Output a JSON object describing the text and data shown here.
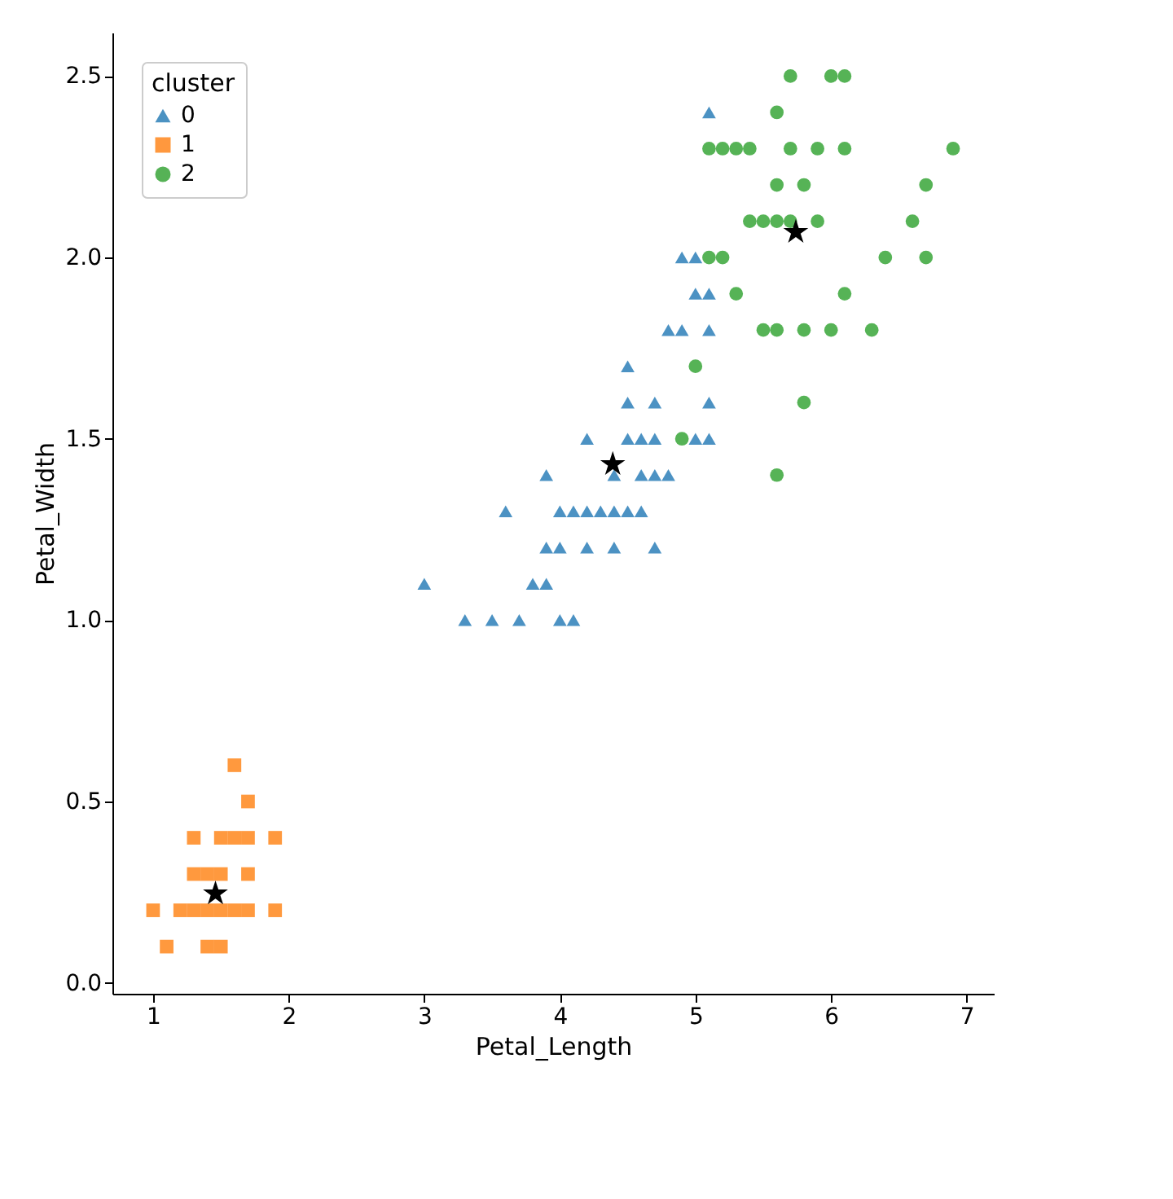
{
  "chart_data": {
    "type": "scatter",
    "xlabel": "Petal_Length",
    "ylabel": "Petal_Width",
    "legend_title": "cluster",
    "legend": "top left",
    "grid": false,
    "xlim": [
      0.7,
      7.2
    ],
    "xticks": [
      1,
      2,
      3,
      4,
      5,
      6,
      7
    ],
    "ylim": [
      -0.03,
      2.62
    ],
    "yticks": [
      {
        "value": 0,
        "label": "0.0"
      },
      0.5,
      {
        "value": 1,
        "label": "1.0"
      },
      1.5,
      {
        "value": 2,
        "label": "2.0"
      },
      2.5
    ],
    "series": [
      {
        "name": "0",
        "color": "#1f77b4",
        "marker": "triangle",
        "x": [
          5.1,
          4.9,
          5.0,
          5.0,
          5.1,
          4.8,
          4.9,
          5.1,
          4.5,
          4.5,
          4.7,
          5.1,
          4.2,
          4.5,
          4.6,
          4.7,
          5.0,
          5.1,
          3.9,
          4.4,
          4.6,
          4.7,
          4.8,
          3.6,
          4.0,
          4.1,
          4.2,
          4.3,
          4.4,
          4.5,
          4.6,
          3.9,
          4.0,
          4.2,
          4.4,
          4.7,
          3.0,
          3.8,
          3.9,
          3.3,
          3.5,
          3.7,
          4.0,
          4.1
        ],
        "values": [
          2.4,
          2.0,
          2.0,
          1.9,
          1.9,
          1.8,
          1.8,
          1.8,
          1.7,
          1.6,
          1.6,
          1.6,
          1.5,
          1.5,
          1.5,
          1.5,
          1.5,
          1.5,
          1.4,
          1.4,
          1.4,
          1.4,
          1.4,
          1.3,
          1.3,
          1.3,
          1.3,
          1.3,
          1.3,
          1.3,
          1.3,
          1.2,
          1.2,
          1.2,
          1.2,
          1.2,
          1.1,
          1.1,
          1.1,
          1.0,
          1.0,
          1.0,
          1.0,
          1.0
        ]
      },
      {
        "name": "1",
        "color": "#ff7f0e",
        "marker": "square",
        "x": [
          1.6,
          1.7,
          1.3,
          1.5,
          1.6,
          1.7,
          1.9,
          1.3,
          1.4,
          1.5,
          1.7,
          1.0,
          1.2,
          1.3,
          1.4,
          1.5,
          1.6,
          1.7,
          1.9,
          1.1,
          1.4,
          1.5
        ],
        "values": [
          0.6,
          0.5,
          0.4,
          0.4,
          0.4,
          0.4,
          0.4,
          0.3,
          0.3,
          0.3,
          0.3,
          0.2,
          0.2,
          0.2,
          0.2,
          0.2,
          0.2,
          0.2,
          0.2,
          0.1,
          0.1,
          0.1
        ]
      },
      {
        "name": "2",
        "color": "#2ca02c",
        "marker": "circle",
        "x": [
          5.7,
          6.0,
          6.1,
          5.6,
          5.1,
          5.2,
          5.3,
          5.4,
          5.7,
          5.9,
          6.1,
          6.9,
          5.6,
          5.8,
          6.7,
          5.4,
          5.5,
          5.6,
          5.7,
          5.9,
          6.6,
          5.1,
          5.2,
          6.4,
          6.7,
          5.3,
          6.1,
          5.5,
          5.6,
          5.8,
          6.0,
          6.3,
          5.0,
          5.8,
          4.9,
          5.6
        ],
        "values": [
          2.5,
          2.5,
          2.5,
          2.4,
          2.3,
          2.3,
          2.3,
          2.3,
          2.3,
          2.3,
          2.3,
          2.3,
          2.2,
          2.2,
          2.2,
          2.1,
          2.1,
          2.1,
          2.1,
          2.1,
          2.1,
          2.0,
          2.0,
          2.0,
          2.0,
          1.9,
          1.9,
          1.8,
          1.8,
          1.8,
          1.8,
          1.8,
          1.7,
          1.6,
          1.5,
          1.4
        ]
      },
      {
        "color": "#000000",
        "marker": "star",
        "x": [
          1.46,
          4.39,
          5.74
        ],
        "values": [
          0.246,
          1.43,
          2.07
        ]
      }
    ]
  }
}
